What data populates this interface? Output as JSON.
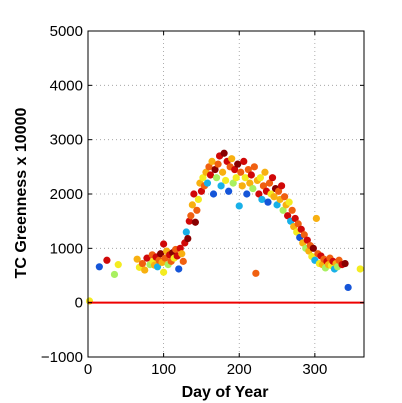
{
  "chart_data": {
    "type": "scatter",
    "title": "",
    "xlabel": "Day of Year",
    "ylabel": "TC Greenness x 10000",
    "xlim": [
      0,
      365
    ],
    "ylim": [
      -1000,
      5000
    ],
    "xticks": [
      0,
      100,
      200,
      300
    ],
    "yticks": [
      -1000,
      0,
      1000,
      2000,
      3000,
      4000,
      5000
    ],
    "grid": true,
    "legend": "none",
    "reference_line": {
      "y": 0,
      "color": "#ee0000"
    },
    "colormap": [
      "#1555d8",
      "#18b0e8",
      "#a8f060",
      "#f4ec20",
      "#f8b010",
      "#f06010",
      "#d00808",
      "#880000"
    ],
    "points": [
      [
        2,
        30,
        3
      ],
      [
        15,
        660,
        0
      ],
      [
        25,
        780,
        6
      ],
      [
        35,
        520,
        2
      ],
      [
        40,
        700,
        3
      ],
      [
        65,
        800,
        4
      ],
      [
        68,
        650,
        3
      ],
      [
        72,
        720,
        5
      ],
      [
        75,
        600,
        4
      ],
      [
        78,
        820,
        6
      ],
      [
        82,
        700,
        2
      ],
      [
        85,
        880,
        5
      ],
      [
        86,
        760,
        3
      ],
      [
        88,
        690,
        4
      ],
      [
        90,
        840,
        6
      ],
      [
        92,
        660,
        1
      ],
      [
        94,
        780,
        5
      ],
      [
        96,
        900,
        7
      ],
      [
        98,
        740,
        4
      ],
      [
        100,
        560,
        3
      ],
      [
        100,
        1080,
        6
      ],
      [
        102,
        820,
        5
      ],
      [
        104,
        950,
        4
      ],
      [
        106,
        700,
        2
      ],
      [
        108,
        880,
        6
      ],
      [
        110,
        760,
        5
      ],
      [
        112,
        920,
        7
      ],
      [
        114,
        820,
        3
      ],
      [
        116,
        980,
        5
      ],
      [
        118,
        860,
        6
      ],
      [
        120,
        620,
        0
      ],
      [
        122,
        1000,
        6
      ],
      [
        124,
        900,
        4
      ],
      [
        126,
        760,
        5
      ],
      [
        128,
        1100,
        6
      ],
      [
        130,
        1300,
        1
      ],
      [
        132,
        1180,
        7
      ],
      [
        134,
        1500,
        6
      ],
      [
        136,
        1600,
        5
      ],
      [
        138,
        1800,
        4
      ],
      [
        140,
        2000,
        6
      ],
      [
        142,
        1480,
        7
      ],
      [
        144,
        1700,
        5
      ],
      [
        146,
        1900,
        3
      ],
      [
        148,
        2200,
        4
      ],
      [
        150,
        2050,
        6
      ],
      [
        152,
        2300,
        3
      ],
      [
        154,
        2150,
        5
      ],
      [
        156,
        2400,
        4
      ],
      [
        158,
        2200,
        1
      ],
      [
        160,
        2500,
        5
      ],
      [
        162,
        2350,
        6
      ],
      [
        164,
        2600,
        4
      ],
      [
        166,
        2000,
        0
      ],
      [
        168,
        2450,
        7
      ],
      [
        170,
        2300,
        2
      ],
      [
        172,
        2550,
        5
      ],
      [
        174,
        2700,
        6
      ],
      [
        176,
        2150,
        1
      ],
      [
        178,
        2400,
        4
      ],
      [
        180,
        2750,
        7
      ],
      [
        182,
        2250,
        3
      ],
      [
        184,
        2600,
        6
      ],
      [
        186,
        2050,
        0
      ],
      [
        188,
        2500,
        5
      ],
      [
        190,
        2650,
        4
      ],
      [
        192,
        2200,
        2
      ],
      [
        194,
        2450,
        6
      ],
      [
        196,
        2300,
        3
      ],
      [
        198,
        2550,
        7
      ],
      [
        200,
        1780,
        1
      ],
      [
        202,
        2400,
        5
      ],
      [
        204,
        2150,
        4
      ],
      [
        206,
        2600,
        6
      ],
      [
        208,
        2300,
        3
      ],
      [
        210,
        2000,
        0
      ],
      [
        212,
        2450,
        5
      ],
      [
        214,
        2200,
        4
      ],
      [
        216,
        2350,
        6
      ],
      [
        218,
        2100,
        2
      ],
      [
        220,
        2500,
        5
      ],
      [
        222,
        540,
        5
      ],
      [
        224,
        2250,
        4
      ],
      [
        226,
        2000,
        6
      ],
      [
        228,
        2300,
        3
      ],
      [
        230,
        1900,
        1
      ],
      [
        232,
        2150,
        5
      ],
      [
        234,
        2400,
        4
      ],
      [
        236,
        2050,
        6
      ],
      [
        238,
        1850,
        0
      ],
      [
        240,
        2200,
        5
      ],
      [
        242,
        2000,
        3
      ],
      [
        244,
        2300,
        6
      ],
      [
        246,
        1950,
        4
      ],
      [
        248,
        2100,
        7
      ],
      [
        250,
        1800,
        1
      ],
      [
        252,
        2050,
        5
      ],
      [
        254,
        1900,
        4
      ],
      [
        256,
        2150,
        6
      ],
      [
        258,
        1700,
        2
      ],
      [
        260,
        1950,
        5
      ],
      [
        262,
        1800,
        4
      ],
      [
        264,
        1600,
        6
      ],
      [
        266,
        1850,
        3
      ],
      [
        268,
        1500,
        1
      ],
      [
        270,
        1700,
        5
      ],
      [
        272,
        1400,
        4
      ],
      [
        274,
        1550,
        6
      ],
      [
        276,
        1300,
        3
      ],
      [
        278,
        1450,
        5
      ],
      [
        280,
        1200,
        0
      ],
      [
        282,
        1350,
        6
      ],
      [
        284,
        1100,
        4
      ],
      [
        286,
        1250,
        5
      ],
      [
        288,
        1000,
        2
      ],
      [
        290,
        1150,
        6
      ],
      [
        292,
        950,
        4
      ],
      [
        294,
        1050,
        5
      ],
      [
        296,
        850,
        3
      ],
      [
        298,
        1000,
        7
      ],
      [
        300,
        780,
        1
      ],
      [
        302,
        1550,
        4
      ],
      [
        304,
        900,
        5
      ],
      [
        306,
        720,
        3
      ],
      [
        308,
        860,
        6
      ],
      [
        310,
        700,
        4
      ],
      [
        312,
        800,
        5
      ],
      [
        314,
        640,
        2
      ],
      [
        316,
        760,
        6
      ],
      [
        318,
        700,
        4
      ],
      [
        320,
        820,
        5
      ],
      [
        322,
        680,
        3
      ],
      [
        324,
        760,
        6
      ],
      [
        326,
        620,
        1
      ],
      [
        328,
        720,
        4
      ],
      [
        330,
        660,
        2
      ],
      [
        332,
        780,
        5
      ],
      [
        336,
        700,
        6
      ],
      [
        340,
        720,
        7
      ],
      [
        344,
        280,
        0
      ],
      [
        360,
        620,
        3
      ]
    ]
  }
}
